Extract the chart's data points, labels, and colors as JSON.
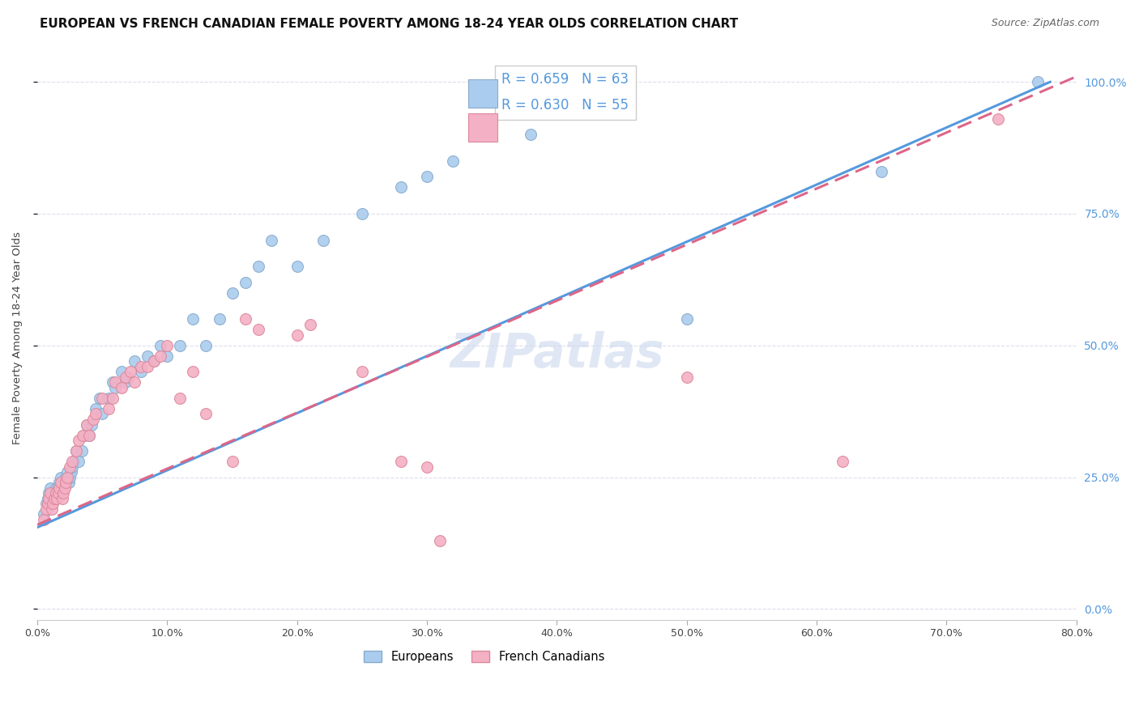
{
  "title": "EUROPEAN VS FRENCH CANADIAN FEMALE POVERTY AMONG 18-24 YEAR OLDS CORRELATION CHART",
  "source": "Source: ZipAtlas.com",
  "ylabel": "Female Poverty Among 18-24 Year Olds",
  "xlim": [
    0.0,
    0.8
  ],
  "ylim": [
    -0.02,
    1.05
  ],
  "european_color": "#aaccee",
  "french_color": "#f4b0c5",
  "european_edge": "#88aacc",
  "french_edge": "#dd8899",
  "line_european_color": "#5599dd",
  "line_french_color": "#dd6688",
  "R_european": 0.659,
  "N_european": 63,
  "R_french": 0.63,
  "N_french": 55,
  "watermark": "ZIPatlas",
  "legend_label_european": "Europeans",
  "legend_label_french": "French Canadians",
  "european_x": [
    0.005,
    0.007,
    0.008,
    0.009,
    0.01,
    0.011,
    0.012,
    0.013,
    0.014,
    0.015,
    0.016,
    0.017,
    0.018,
    0.019,
    0.02,
    0.021,
    0.022,
    0.023,
    0.024,
    0.025,
    0.026,
    0.027,
    0.028,
    0.03,
    0.032,
    0.034,
    0.036,
    0.038,
    0.04,
    0.042,
    0.045,
    0.048,
    0.05,
    0.055,
    0.058,
    0.06,
    0.065,
    0.068,
    0.07,
    0.075,
    0.08,
    0.085,
    0.09,
    0.095,
    0.1,
    0.11,
    0.12,
    0.13,
    0.14,
    0.15,
    0.16,
    0.17,
    0.18,
    0.2,
    0.22,
    0.25,
    0.28,
    0.3,
    0.32,
    0.38,
    0.5,
    0.65,
    0.77
  ],
  "european_y": [
    0.18,
    0.2,
    0.21,
    0.22,
    0.23,
    0.2,
    0.21,
    0.22,
    0.23,
    0.22,
    0.23,
    0.24,
    0.25,
    0.22,
    0.23,
    0.24,
    0.25,
    0.26,
    0.24,
    0.25,
    0.26,
    0.27,
    0.28,
    0.3,
    0.28,
    0.3,
    0.33,
    0.35,
    0.33,
    0.35,
    0.38,
    0.4,
    0.37,
    0.4,
    0.43,
    0.42,
    0.45,
    0.43,
    0.44,
    0.47,
    0.45,
    0.48,
    0.47,
    0.5,
    0.48,
    0.5,
    0.55,
    0.5,
    0.55,
    0.6,
    0.62,
    0.65,
    0.7,
    0.65,
    0.7,
    0.75,
    0.8,
    0.82,
    0.85,
    0.9,
    0.55,
    0.83,
    1.0
  ],
  "french_x": [
    0.005,
    0.007,
    0.008,
    0.009,
    0.01,
    0.011,
    0.012,
    0.013,
    0.014,
    0.015,
    0.016,
    0.017,
    0.018,
    0.019,
    0.02,
    0.021,
    0.022,
    0.023,
    0.025,
    0.027,
    0.03,
    0.032,
    0.035,
    0.038,
    0.04,
    0.043,
    0.045,
    0.05,
    0.055,
    0.058,
    0.06,
    0.065,
    0.068,
    0.072,
    0.075,
    0.08,
    0.085,
    0.09,
    0.095,
    0.1,
    0.11,
    0.12,
    0.13,
    0.15,
    0.16,
    0.17,
    0.2,
    0.21,
    0.25,
    0.28,
    0.3,
    0.31,
    0.5,
    0.62,
    0.74
  ],
  "french_y": [
    0.17,
    0.19,
    0.2,
    0.21,
    0.22,
    0.19,
    0.2,
    0.21,
    0.22,
    0.21,
    0.22,
    0.23,
    0.24,
    0.21,
    0.22,
    0.23,
    0.24,
    0.25,
    0.27,
    0.28,
    0.3,
    0.32,
    0.33,
    0.35,
    0.33,
    0.36,
    0.37,
    0.4,
    0.38,
    0.4,
    0.43,
    0.42,
    0.44,
    0.45,
    0.43,
    0.46,
    0.46,
    0.47,
    0.48,
    0.5,
    0.4,
    0.45,
    0.37,
    0.28,
    0.55,
    0.53,
    0.52,
    0.54,
    0.45,
    0.28,
    0.27,
    0.13,
    0.44,
    0.28,
    0.93
  ],
  "background_color": "#ffffff",
  "grid_color": "#ddddee",
  "title_fontsize": 11,
  "label_fontsize": 9.5,
  "tick_fontsize": 9,
  "source_fontsize": 9,
  "watermark_color": "#ccd8ee",
  "watermark_alpha": 0.6
}
